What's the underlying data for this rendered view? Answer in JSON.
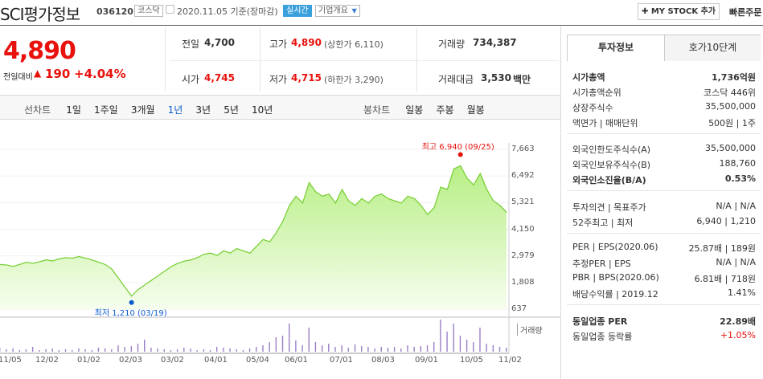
{
  "header": {
    "title": "SCI평가정보",
    "code": "036120",
    "market": "코스닥",
    "date_text": "2020.11.05 기준(장마감)",
    "realtime": "실시간",
    "overview": "기업개요",
    "my_stock_btn": "MY STOCK 추가",
    "quick_order": "빠른주문"
  },
  "price": {
    "current": "4,890",
    "change_label": "전일대비",
    "change": "190",
    "change_pct": "+4.04%"
  },
  "stats": {
    "prev_label": "전일",
    "prev": "4,700",
    "high_label": "고가",
    "high": "4,890",
    "upper_limit": "(상한가 6,110)",
    "volume_label": "거래량",
    "volume": "734,387",
    "open_label": "시가",
    "open": "4,745",
    "low_label": "저가",
    "low": "4,715",
    "lower_limit": "(하한가 3,290)",
    "amount_label": "거래대금",
    "amount": "3,530",
    "amount_unit": "백만"
  },
  "chart_tabs": {
    "line_label": "선차트",
    "periods": [
      "1일",
      "1주일",
      "3개월",
      "1년",
      "3년",
      "5년",
      "10년"
    ],
    "selected": "1년",
    "candle_label": "봉차트",
    "candles": [
      "일봉",
      "주봉",
      "월봉"
    ]
  },
  "chart_data": {
    "type": "area",
    "y_ticks": [
      "7,663",
      "6,492",
      "5,321",
      "4,150",
      "2,979",
      "1,808",
      "637"
    ],
    "x_ticks": [
      "11/05",
      "12/02",
      "01/02",
      "02/03",
      "03/02",
      "04/01",
      "05/04",
      "06/01",
      "07/01",
      "08/03",
      "09/01",
      "10/05",
      "11/02"
    ],
    "ylim": [
      637,
      7663
    ],
    "high_annotation": "최고 6,940 (09/25)",
    "low_annotation": "최저 1,210 (03/19)",
    "volume_label": "거래량",
    "series": [
      {
        "values": [
          2600,
          2580,
          2520,
          2600,
          2700,
          2650,
          2720,
          2800,
          2760,
          2850,
          2900,
          2880,
          2950,
          2880,
          2800,
          2700,
          2600,
          2400,
          2000,
          1600,
          1210,
          1500,
          1700,
          1900,
          2100,
          2300,
          2500,
          2650,
          2750,
          2800,
          2900,
          3050,
          3100,
          3000,
          3200,
          3100,
          3300,
          3200,
          3100,
          3400,
          3700,
          3600,
          4000,
          4500,
          5200,
          5600,
          5300,
          6200,
          5800,
          5600,
          5700,
          5300,
          5900,
          5400,
          5200,
          5500,
          5300,
          5600,
          5700,
          5500,
          5400,
          5300,
          5600,
          5500,
          5200,
          4800,
          5100,
          6000,
          5900,
          6800,
          6940,
          6400,
          6100,
          6600,
          5900,
          5400,
          5200,
          4890
        ]
      }
    ],
    "volume_values": [
      5,
      3,
      4,
      2,
      3,
      6,
      2,
      3,
      4,
      2,
      3,
      2,
      4,
      3,
      2,
      5,
      4,
      3,
      8,
      6,
      7,
      10,
      15,
      5,
      4,
      3,
      2,
      3,
      5,
      4,
      2,
      3,
      2,
      6,
      5,
      4,
      3,
      2,
      4,
      6,
      8,
      12,
      18,
      20,
      35,
      14,
      8,
      30,
      12,
      8,
      10,
      6,
      8,
      5,
      9,
      7,
      6,
      4,
      6,
      5,
      6,
      4,
      8,
      6,
      7,
      8,
      12,
      40,
      25,
      35,
      20,
      15,
      12,
      30,
      10,
      8,
      6,
      5
    ]
  },
  "sidebar": {
    "tab_invest": "투자정보",
    "tab_hoga": "호가10단계",
    "rows1": [
      {
        "label": "시가총액",
        "value": "1,736억원",
        "bold": true
      },
      {
        "label": "시가총액순위",
        "value": "코스닥 446위"
      },
      {
        "label": "상장주식수",
        "value": "35,500,000"
      },
      {
        "label": "액면가 | 매매단위",
        "value": "500원 | 1주"
      }
    ],
    "rows2": [
      {
        "label": "외국인한도주식수(A)",
        "value": "35,500,000"
      },
      {
        "label": "외국인보유주식수(B)",
        "value": "188,760"
      },
      {
        "label": "외국인소진율(B/A)",
        "value": "0.53%",
        "bold": true
      }
    ],
    "rows3": [
      {
        "label": "투자의견 | 목표주가",
        "value": "N/A | N/A"
      },
      {
        "label": "52주최고 | 최저",
        "value": "6,940 | 1,210"
      }
    ],
    "rows4": [
      {
        "label": "PER | EPS(2020.06)",
        "value": "25.87배 | 189원"
      },
      {
        "label": "추정PER | EPS",
        "value": "N/A | N/A"
      },
      {
        "label": "PBR | BPS(2020.06)",
        "value": "6.81배 | 718원"
      },
      {
        "label": "배당수익률 | 2019.12",
        "value": "1.41%"
      }
    ],
    "rows5": [
      {
        "label": "동일업종 PER",
        "value": "22.89배",
        "bold": true
      },
      {
        "label": "동일업종 등락률",
        "value": "+1.05%",
        "red": true
      }
    ]
  }
}
